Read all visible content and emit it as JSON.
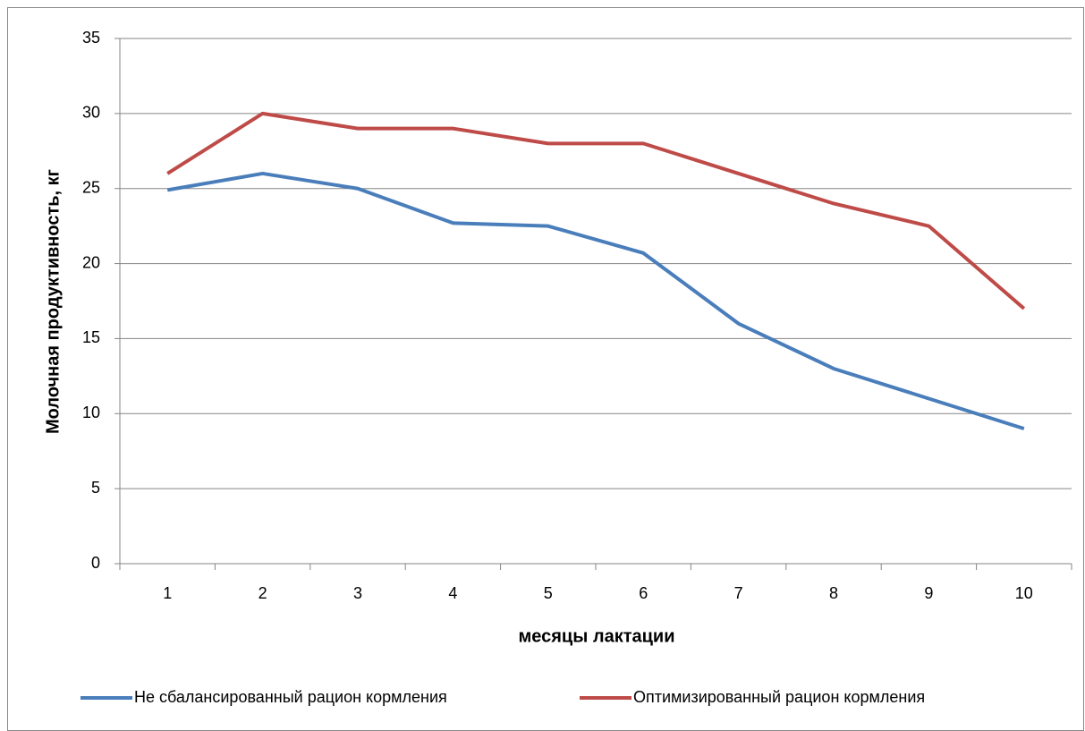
{
  "chart_data": {
    "type": "line",
    "x_label": "месяцы лактации",
    "y_label": "Молочная продуктивность, кг",
    "categories": [
      "1",
      "2",
      "3",
      "4",
      "5",
      "6",
      "7",
      "8",
      "9",
      "10"
    ],
    "series": [
      {
        "name": "Не сбалансированный рацион кормления",
        "color": "#4a7ebb",
        "values": [
          24.9,
          26,
          25,
          22.7,
          22.5,
          20.7,
          16,
          13,
          11,
          9
        ]
      },
      {
        "name": "Оптимизированный рацион кормления",
        "color": "#be4b48",
        "values": [
          26,
          30,
          29,
          29,
          28,
          28,
          26,
          24,
          22.5,
          17
        ]
      }
    ],
    "ylim": [
      0,
      35
    ],
    "yticks": [
      0,
      5,
      10,
      15,
      20,
      25,
      30,
      35
    ],
    "grid": true,
    "legend": "bottom"
  }
}
